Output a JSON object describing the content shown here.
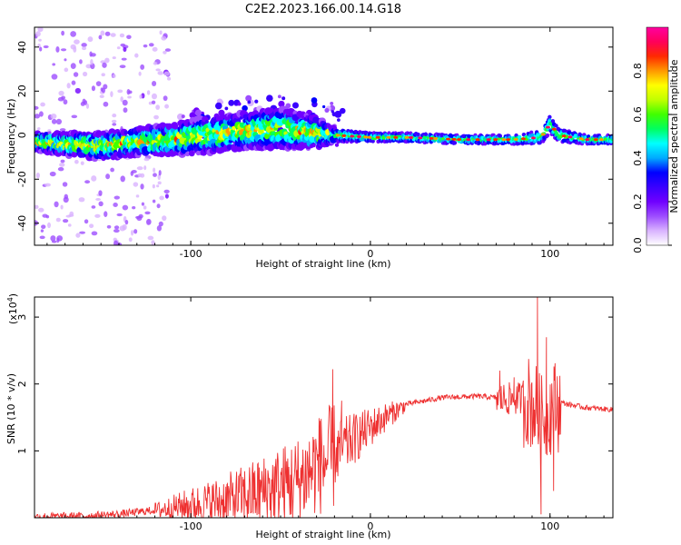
{
  "title": "C2E2.2023.166.00.14.G18",
  "chart_data": [
    {
      "type": "heatmap",
      "xlabel": "Height of straight line (km)",
      "ylabel": "Frequency (Hz)",
      "xlim": [
        -187,
        135
      ],
      "ylim": [
        -50,
        49
      ],
      "xticks": [
        -100,
        0,
        100
      ],
      "xtick_labels": [
        "-100",
        "0",
        "100"
      ],
      "yticks": [
        -40,
        -20,
        0,
        20,
        40
      ],
      "ytick_labels": [
        "-40",
        "-20",
        "0",
        "20",
        "40"
      ],
      "colorbar": {
        "label": "Normalized spectral amplitude",
        "range": [
          0,
          1
        ],
        "ticks": [
          0.0,
          0.2,
          0.4,
          0.6,
          0.8
        ],
        "tick_labels": [
          "0.0",
          "0.2",
          "0.4",
          "0.6",
          "0.8"
        ],
        "colors": [
          "#ffffff",
          "#d9b3ff",
          "#9d4dff",
          "#7000ff",
          "#3a00ff",
          "#0000ff",
          "#00aaff",
          "#00ffff",
          "#00ff60",
          "#40ff00",
          "#c0ff00",
          "#ffff00",
          "#ff9900",
          "#ff2a00",
          "#ff005a",
          "#ff00a0"
        ]
      },
      "ridge": {
        "x": [
          -187,
          -170,
          -150,
          -130,
          -110,
          -90,
          -70,
          -50,
          -30,
          -20,
          0,
          20,
          50,
          80,
          95,
          100,
          105,
          120,
          135
        ],
        "y": [
          -3,
          -4,
          -5,
          -3,
          -2,
          0,
          2,
          3,
          1,
          0,
          -1,
          -1,
          -2,
          -2,
          -1,
          5,
          0,
          -2,
          -2
        ],
        "width": [
          4,
          5,
          6,
          6,
          7,
          8,
          8,
          9,
          7,
          3,
          2,
          2,
          2,
          2,
          3,
          4,
          3,
          2,
          2
        ]
      }
    },
    {
      "type": "line",
      "xlabel": "Height of straight line (km)",
      "ylabel": "SNR (10 * v/v)",
      "y_multiplier_label": "(x10",
      "y_multiplier_exp": "4",
      "y_multiplier_close": ")",
      "xlim": [
        -187,
        135
      ],
      "ylim": [
        0,
        3.3
      ],
      "xticks": [
        -100,
        0,
        100
      ],
      "xtick_labels": [
        "-100",
        "0",
        "100"
      ],
      "yticks": [
        1,
        2,
        3
      ],
      "ytick_labels": [
        "1",
        "2",
        "3"
      ],
      "series": [
        {
          "color": "#ee3030",
          "envelope": {
            "x": [
              -187,
              -160,
              -140,
              -120,
              -100,
              -80,
              -60,
              -40,
              -30,
              -20,
              -10,
              0,
              10,
              20,
              40,
              60,
              70,
              80,
              88,
              92,
              95,
              97,
              100,
              103,
              110,
              120,
              135
            ],
            "y": [
              0.02,
              0.03,
              0.06,
              0.12,
              0.22,
              0.3,
              0.45,
              0.62,
              0.85,
              1.0,
              1.2,
              1.38,
              1.55,
              1.7,
              1.8,
              1.82,
              1.8,
              1.8,
              1.82,
              1.7,
              1.5,
              1.6,
              1.7,
              1.75,
              1.7,
              1.65,
              1.62
            ]
          },
          "spikes": [
            {
              "x": -21,
              "y": 2.22
            },
            {
              "x": -16,
              "y": 1.75
            },
            {
              "x": -28,
              "y": 1.45
            },
            {
              "x": 72,
              "y": 2.2
            },
            {
              "x": 80,
              "y": 2.1
            },
            {
              "x": 93,
              "y": 3.3
            },
            {
              "x": 95,
              "y": 0.05
            },
            {
              "x": 98,
              "y": 2.7
            },
            {
              "x": 102,
              "y": 0.4
            },
            {
              "x": 104,
              "y": 2.1
            }
          ]
        }
      ]
    }
  ]
}
